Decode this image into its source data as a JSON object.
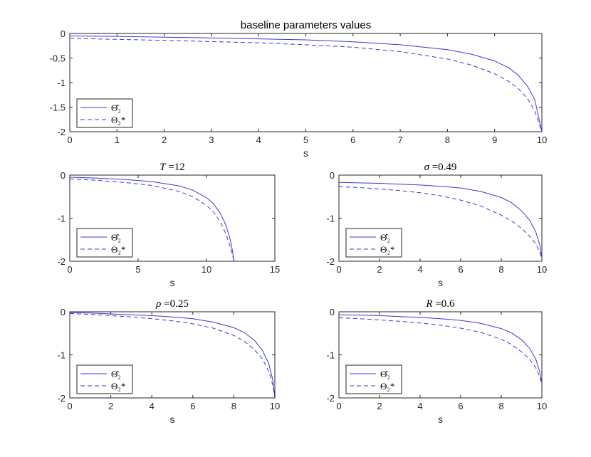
{
  "chart_data": [
    {
      "type": "line",
      "title": "baseline parameters values",
      "xlabel": "s",
      "ylabel": "",
      "xlim": [
        0,
        10
      ],
      "ylim": [
        -2,
        0
      ],
      "xticks": [
        "0",
        "1",
        "2",
        "3",
        "4",
        "5",
        "6",
        "7",
        "8",
        "9",
        "10"
      ],
      "yticks": [
        "0",
        "-0.5",
        "-1",
        "-1.5",
        "-2"
      ],
      "legend_position": "bottom-left",
      "series": [
        {
          "name": "Θ̂₂",
          "style": "solid",
          "color": "#3a3ad6",
          "x": [
            0,
            1,
            2,
            3,
            4,
            5,
            6,
            7,
            8,
            8.5,
            9,
            9.3,
            9.5,
            9.7,
            9.85,
            10
          ],
          "y": [
            -0.05,
            -0.06,
            -0.075,
            -0.09,
            -0.11,
            -0.13,
            -0.17,
            -0.23,
            -0.33,
            -0.42,
            -0.56,
            -0.7,
            -0.85,
            -1.08,
            -1.35,
            -2.0
          ]
        },
        {
          "name": "Θ₂*",
          "style": "dashed",
          "color": "#3a3ad6",
          "x": [
            0,
            1,
            2,
            3,
            4,
            5,
            6,
            7,
            8,
            8.5,
            9,
            9.3,
            9.5,
            9.7,
            9.85,
            10
          ],
          "y": [
            -0.1,
            -0.12,
            -0.14,
            -0.165,
            -0.19,
            -0.23,
            -0.28,
            -0.37,
            -0.52,
            -0.64,
            -0.82,
            -0.98,
            -1.12,
            -1.33,
            -1.58,
            -2.0
          ]
        }
      ]
    },
    {
      "type": "line",
      "title": "T =12",
      "xlabel": "s",
      "xlim": [
        0,
        15
      ],
      "ylim": [
        -2,
        0
      ],
      "xticks": [
        "0",
        "5",
        "10",
        "15"
      ],
      "yticks": [
        "0",
        "-1",
        "-2"
      ],
      "legend_position": "bottom-left",
      "series": [
        {
          "name": "Θ̂₂",
          "style": "solid",
          "color": "#3a3ad6",
          "x": [
            0,
            2,
            4,
            6,
            8,
            9,
            10,
            10.5,
            11,
            11.4,
            11.7,
            11.9,
            12
          ],
          "y": [
            -0.05,
            -0.07,
            -0.1,
            -0.15,
            -0.25,
            -0.35,
            -0.52,
            -0.66,
            -0.88,
            -1.15,
            -1.45,
            -1.75,
            -2.0
          ]
        },
        {
          "name": "Θ₂*",
          "style": "dashed",
          "color": "#3a3ad6",
          "x": [
            0,
            2,
            4,
            6,
            8,
            9,
            10,
            10.5,
            11,
            11.4,
            11.7,
            11.9,
            12
          ],
          "y": [
            -0.09,
            -0.12,
            -0.17,
            -0.24,
            -0.38,
            -0.5,
            -0.7,
            -0.85,
            -1.08,
            -1.35,
            -1.62,
            -1.85,
            -2.0
          ]
        }
      ]
    },
    {
      "type": "line",
      "title": "σ =0.49",
      "xlabel": "s",
      "xlim": [
        0,
        10
      ],
      "ylim": [
        -2,
        0
      ],
      "xticks": [
        "0",
        "2",
        "4",
        "6",
        "8",
        "10"
      ],
      "yticks": [
        "0",
        "-1",
        "-2"
      ],
      "legend_position": "bottom-left",
      "series": [
        {
          "name": "Θ̂₂",
          "style": "solid",
          "color": "#3a3ad6",
          "x": [
            0,
            1,
            2,
            3,
            4,
            5,
            6,
            7,
            8,
            8.5,
            9,
            9.4,
            9.7,
            9.9,
            10
          ],
          "y": [
            -0.17,
            -0.18,
            -0.19,
            -0.21,
            -0.23,
            -0.26,
            -0.3,
            -0.38,
            -0.52,
            -0.64,
            -0.83,
            -1.05,
            -1.32,
            -1.62,
            -1.92
          ]
        },
        {
          "name": "Θ₂*",
          "style": "dashed",
          "color": "#3a3ad6",
          "x": [
            0,
            1,
            2,
            3,
            4,
            5,
            6,
            7,
            8,
            8.5,
            9,
            9.4,
            9.7,
            9.9,
            10
          ],
          "y": [
            -0.27,
            -0.29,
            -0.32,
            -0.36,
            -0.41,
            -0.48,
            -0.58,
            -0.72,
            -0.93,
            -1.06,
            -1.24,
            -1.42,
            -1.6,
            -1.8,
            -1.95
          ]
        }
      ]
    },
    {
      "type": "line",
      "title": "ρ =0.25",
      "xlabel": "s",
      "xlim": [
        0,
        10
      ],
      "ylim": [
        -2,
        0
      ],
      "xticks": [
        "0",
        "2",
        "4",
        "6",
        "8",
        "10"
      ],
      "yticks": [
        "0",
        "-1",
        "-2"
      ],
      "legend_position": "bottom-left",
      "series": [
        {
          "name": "Θ̂₂",
          "style": "solid",
          "color": "#3a3ad6",
          "x": [
            0,
            1,
            2,
            3,
            4,
            5,
            6,
            7,
            8,
            8.5,
            9,
            9.4,
            9.7,
            9.9,
            10
          ],
          "y": [
            -0.02,
            -0.03,
            -0.05,
            -0.07,
            -0.09,
            -0.12,
            -0.16,
            -0.24,
            -0.37,
            -0.48,
            -0.66,
            -0.9,
            -1.2,
            -1.58,
            -2.0
          ]
        },
        {
          "name": "Θ₂*",
          "style": "dashed",
          "color": "#3a3ad6",
          "x": [
            0,
            1,
            2,
            3,
            4,
            5,
            6,
            7,
            8,
            8.5,
            9,
            9.4,
            9.7,
            9.9,
            10
          ],
          "y": [
            -0.04,
            -0.06,
            -0.09,
            -0.12,
            -0.16,
            -0.21,
            -0.28,
            -0.38,
            -0.55,
            -0.68,
            -0.88,
            -1.1,
            -1.38,
            -1.7,
            -2.0
          ]
        }
      ]
    },
    {
      "type": "line",
      "title": "R =0.6",
      "xlabel": "s",
      "xlim": [
        0,
        10
      ],
      "ylim": [
        -2,
        0
      ],
      "xticks": [
        "0",
        "2",
        "4",
        "6",
        "8",
        "10"
      ],
      "yticks": [
        "0",
        "-1",
        "-2"
      ],
      "legend_position": "bottom-left",
      "series": [
        {
          "name": "Θ̂₂",
          "style": "solid",
          "color": "#3a3ad6",
          "x": [
            0,
            1,
            2,
            3,
            4,
            5,
            6,
            7,
            8,
            8.5,
            9,
            9.4,
            9.7,
            9.9,
            10
          ],
          "y": [
            -0.07,
            -0.08,
            -0.09,
            -0.11,
            -0.13,
            -0.16,
            -0.2,
            -0.27,
            -0.39,
            -0.49,
            -0.65,
            -0.85,
            -1.1,
            -1.4,
            -1.65
          ]
        },
        {
          "name": "Θ₂*",
          "style": "dashed",
          "color": "#3a3ad6",
          "x": [
            0,
            1,
            2,
            3,
            4,
            5,
            6,
            7,
            8,
            8.5,
            9,
            9.4,
            9.7,
            9.9,
            10
          ],
          "y": [
            -0.14,
            -0.16,
            -0.19,
            -0.22,
            -0.26,
            -0.31,
            -0.38,
            -0.48,
            -0.64,
            -0.76,
            -0.93,
            -1.1,
            -1.3,
            -1.52,
            -1.67
          ]
        }
      ]
    }
  ],
  "colors": {
    "series": "#3a3ad6",
    "axis": "#262626",
    "legend_border": "#262626"
  }
}
